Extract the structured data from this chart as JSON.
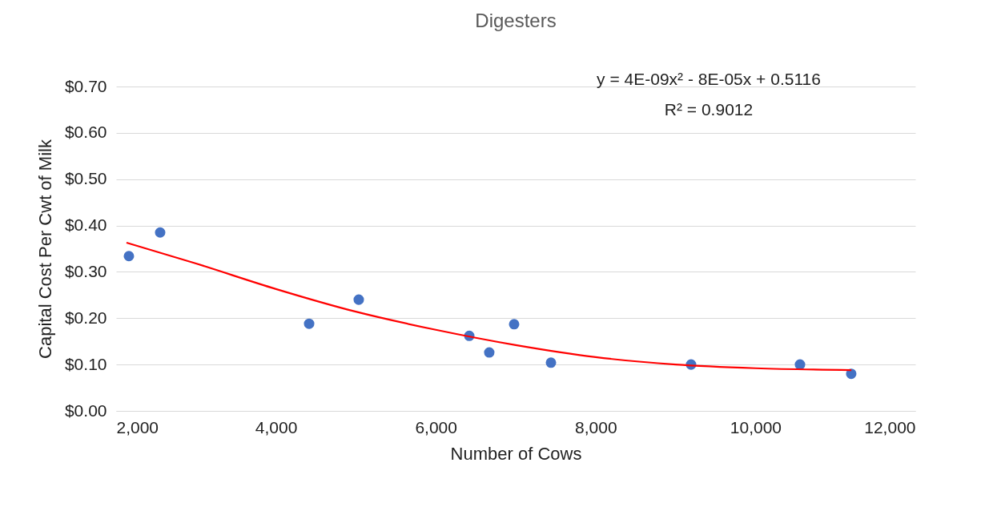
{
  "chart_data": {
    "type": "scatter",
    "title": "Digesters",
    "xlabel": "Number of Cows",
    "ylabel": "Capital Cost Per Cwt of Milk",
    "annotations": [
      "y = 4E-09x² - 8E-05x + 0.5116",
      "R² = 0.9012"
    ],
    "series": [
      {
        "color": "#4472c4",
        "marker": "circle",
        "x": [
          2160,
          2551,
          4415,
          5036,
          6419,
          6669,
          6980,
          7441,
          9194,
          10557,
          11198
        ],
        "values": [
          0.334,
          0.385,
          0.188,
          0.24,
          0.162,
          0.126,
          0.187,
          0.104,
          0.1,
          0.1,
          0.08
        ]
      },
      {
        "type": "line",
        "color": "#ff0000",
        "x": [
          2130,
          3000,
          4000,
          5000,
          6000,
          7000,
          8000,
          9000,
          10000,
          11200
        ],
        "values": [
          0.363,
          0.318,
          0.263,
          0.214,
          0.175,
          0.142,
          0.116,
          0.1,
          0.092,
          0.088
        ]
      }
    ],
    "xlim": [
      2000,
      12000
    ],
    "xticks": [
      {
        "value": 2000,
        "label": "2,000"
      },
      {
        "value": 4000,
        "label": "4,000"
      },
      {
        "value": 6000,
        "label": "6,000"
      },
      {
        "value": 8000,
        "label": "8,000"
      },
      {
        "value": 10000,
        "label": "10,000"
      },
      {
        "value": 12000,
        "label": "12,000"
      }
    ],
    "ylim": [
      0,
      0.7
    ],
    "yticks": [
      {
        "value": 0,
        "label": "$0.00"
      },
      {
        "value": 0.1,
        "label": "$0.10"
      },
      {
        "value": 0.2,
        "label": "$0.20"
      },
      {
        "value": 0.3,
        "label": "$0.30"
      },
      {
        "value": 0.4,
        "label": "$0.40"
      },
      {
        "value": 0.5,
        "label": "$0.50"
      },
      {
        "value": 0.6,
        "label": "$0.60"
      },
      {
        "value": 0.7,
        "label": "$0.70"
      }
    ],
    "grid": "y"
  }
}
